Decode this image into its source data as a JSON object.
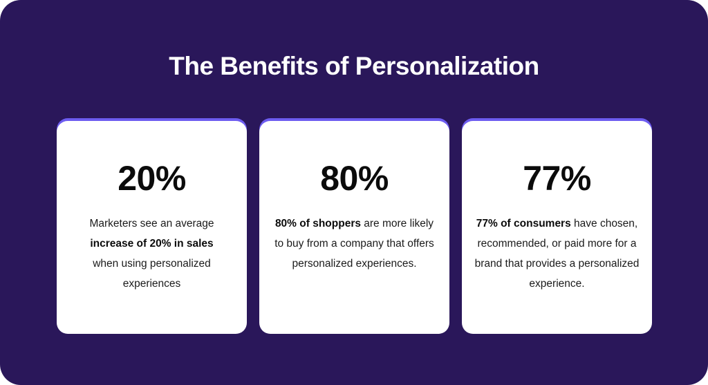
{
  "title": "The Benefits of Personalization",
  "colors": {
    "background": "#2a175a",
    "card": "#ffffff",
    "card_accent": "#6d5cf0",
    "title_text": "#ffffff",
    "body_text": "#1a1a1a"
  },
  "cards": [
    {
      "stat": "20%",
      "text_before": "Marketers see an average ",
      "bold": "increase of 20% in sales",
      "text_after": " when using personalized experiences"
    },
    {
      "stat": "80%",
      "text_before": "",
      "bold": "80% of shoppers",
      "text_after": "  are more likely to buy from a company that offers personalized experiences."
    },
    {
      "stat": "77%",
      "text_before": "",
      "bold": "77% of consumers",
      "text_after": "  have chosen, recommended, or paid more for a brand that provides a personalized experience."
    }
  ]
}
